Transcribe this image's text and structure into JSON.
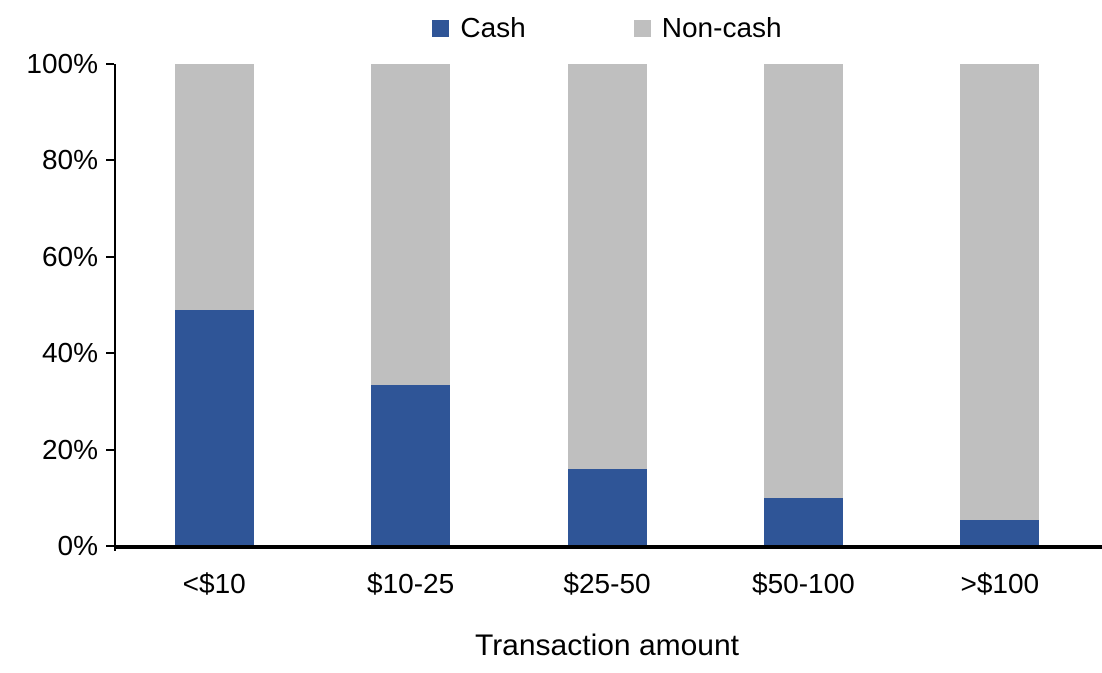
{
  "chart_data": {
    "type": "bar",
    "stacked": true,
    "percent_stacked": true,
    "categories": [
      "<$10",
      "$10-25",
      "$25-50",
      "$50-100",
      ">$100"
    ],
    "series": [
      {
        "name": "Cash",
        "color": "#2F5597",
        "values": [
          49,
          33.5,
          16,
          10,
          5.5
        ]
      },
      {
        "name": "Non-cash",
        "color": "#BFBFBF",
        "values": [
          51,
          66.5,
          84,
          90,
          94.5
        ]
      }
    ],
    "title": "",
    "xlabel": "Transaction amount",
    "ylabel": "",
    "ylim": [
      0,
      100
    ],
    "y_tick_labels": [
      "0%",
      "20%",
      "40%",
      "60%",
      "80%",
      "100%"
    ],
    "y_tick_step": 20,
    "grid": false,
    "legend_position": "top-center"
  },
  "colors": {
    "axis": "#000000",
    "text": "#000000",
    "background": "#FFFFFF"
  }
}
